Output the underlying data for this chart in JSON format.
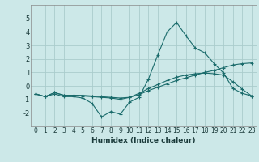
{
  "title": "",
  "xlabel": "Humidex (Indice chaleur)",
  "background_color": "#cce8e8",
  "grid_color": "#aacccc",
  "line_color": "#1a6b6b",
  "x_values": [
    0,
    1,
    2,
    3,
    4,
    5,
    6,
    7,
    8,
    9,
    10,
    11,
    12,
    13,
    14,
    15,
    16,
    17,
    18,
    19,
    20,
    21,
    22,
    23
  ],
  "series1": [
    -0.6,
    -0.8,
    -0.6,
    -0.8,
    -0.8,
    -0.9,
    -1.3,
    -2.3,
    -1.9,
    -2.1,
    -1.2,
    -0.85,
    0.5,
    2.3,
    4.0,
    4.7,
    3.7,
    2.8,
    2.45,
    1.65,
    0.95,
    -0.2,
    -0.55,
    -0.75
  ],
  "series2": [
    -0.6,
    -0.8,
    -0.5,
    -0.7,
    -0.7,
    -0.7,
    -0.75,
    -0.8,
    -0.85,
    -0.9,
    -0.85,
    -0.65,
    -0.35,
    -0.1,
    0.15,
    0.4,
    0.6,
    0.8,
    1.0,
    1.15,
    1.35,
    1.55,
    1.65,
    1.7
  ],
  "series3": [
    -0.6,
    -0.8,
    -0.5,
    -0.7,
    -0.7,
    -0.75,
    -0.8,
    -0.85,
    -0.9,
    -1.0,
    -0.85,
    -0.55,
    -0.2,
    0.1,
    0.4,
    0.65,
    0.8,
    0.9,
    0.95,
    0.9,
    0.8,
    0.3,
    -0.25,
    -0.75
  ],
  "ylim": [
    -3,
    6
  ],
  "xlim": [
    -0.5,
    23.5
  ],
  "yticks": [
    -2,
    -1,
    0,
    1,
    2,
    3,
    4,
    5
  ],
  "xticks": [
    0,
    1,
    2,
    3,
    4,
    5,
    6,
    7,
    8,
    9,
    10,
    11,
    12,
    13,
    14,
    15,
    16,
    17,
    18,
    19,
    20,
    21,
    22,
    23
  ]
}
